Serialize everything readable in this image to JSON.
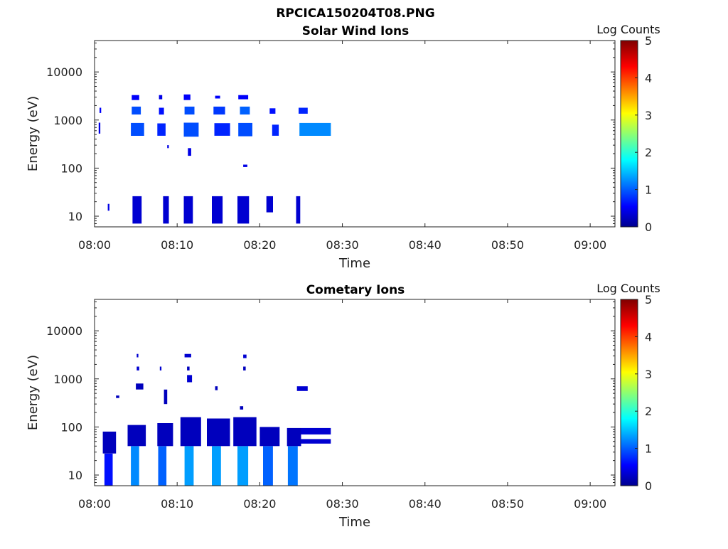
{
  "figure_title": "RPCICA150204T08.PNG",
  "chart_data": [
    {
      "type": "heatmap",
      "title": "Solar Wind Ions",
      "xlabel": "Time",
      "ylabel": "Energy (eV)",
      "x_ticks": [
        "08:00",
        "08:10",
        "08:20",
        "08:30",
        "08:40",
        "08:50",
        "09:00"
      ],
      "x_range_minutes": [
        0,
        63
      ],
      "y_scale": "log",
      "y_ticks": [
        "10",
        "100",
        "1000",
        "10000"
      ],
      "y_range": [
        6,
        45000
      ],
      "grid": false,
      "colorbar": {
        "label": "Log Counts",
        "min": 0,
        "max": 5,
        "ticks": [
          "0",
          "1",
          "2",
          "3",
          "4",
          "5"
        ],
        "colormap": "jet"
      },
      "cells": [
        {
          "t": [
            0.6,
            0.8
          ],
          "e": [
            1400,
            1800
          ],
          "v": 0.6
        },
        {
          "t": [
            0.5,
            0.7
          ],
          "e": [
            520,
            880
          ],
          "v": 0.5
        },
        {
          "t": [
            1.6,
            1.8
          ],
          "e": [
            13,
            18
          ],
          "v": 0.5
        },
        {
          "t": [
            4.5,
            5.4
          ],
          "e": [
            2600,
            3300
          ],
          "v": 0.6
        },
        {
          "t": [
            4.5,
            5.6
          ],
          "e": [
            1300,
            1900
          ],
          "v": 1.0
        },
        {
          "t": [
            4.4,
            6.0
          ],
          "e": [
            470,
            870
          ],
          "v": 1.0
        },
        {
          "t": [
            4.6,
            5.7
          ],
          "e": [
            7,
            26
          ],
          "v": 0.4
        },
        {
          "t": [
            7.8,
            8.2
          ],
          "e": [
            2700,
            3300
          ],
          "v": 0.5
        },
        {
          "t": [
            7.8,
            8.4
          ],
          "e": [
            1300,
            1800
          ],
          "v": 0.7
        },
        {
          "t": [
            7.6,
            8.6
          ],
          "e": [
            470,
            850
          ],
          "v": 0.8
        },
        {
          "t": [
            8.8,
            9.0
          ],
          "e": [
            260,
            300
          ],
          "v": 0.5
        },
        {
          "t": [
            8.3,
            9.0
          ],
          "e": [
            7,
            26
          ],
          "v": 0.4
        },
        {
          "t": [
            10.8,
            11.6
          ],
          "e": [
            2600,
            3400
          ],
          "v": 0.6
        },
        {
          "t": [
            10.9,
            12.1
          ],
          "e": [
            1300,
            1900
          ],
          "v": 1.0
        },
        {
          "t": [
            10.8,
            12.6
          ],
          "e": [
            450,
            880
          ],
          "v": 1.0
        },
        {
          "t": [
            11.3,
            11.7
          ],
          "e": [
            180,
            260
          ],
          "v": 0.5
        },
        {
          "t": [
            10.8,
            11.9
          ],
          "e": [
            7,
            26
          ],
          "v": 0.4
        },
        {
          "t": [
            14.6,
            15.2
          ],
          "e": [
            2800,
            3200
          ],
          "v": 0.6
        },
        {
          "t": [
            14.4,
            15.8
          ],
          "e": [
            1300,
            1900
          ],
          "v": 0.9
        },
        {
          "t": [
            14.5,
            16.4
          ],
          "e": [
            470,
            860
          ],
          "v": 0.8
        },
        {
          "t": [
            14.2,
            15.5
          ],
          "e": [
            7,
            26
          ],
          "v": 0.4
        },
        {
          "t": [
            17.4,
            18.6
          ],
          "e": [
            2700,
            3300
          ],
          "v": 0.6
        },
        {
          "t": [
            17.6,
            18.8
          ],
          "e": [
            1300,
            1900
          ],
          "v": 1.1
        },
        {
          "t": [
            17.4,
            19.1
          ],
          "e": [
            460,
            870
          ],
          "v": 1.0
        },
        {
          "t": [
            18.0,
            18.5
          ],
          "e": [
            105,
            118
          ],
          "v": 0.5
        },
        {
          "t": [
            17.3,
            18.7
          ],
          "e": [
            7,
            26
          ],
          "v": 0.4
        },
        {
          "t": [
            21.2,
            21.9
          ],
          "e": [
            1350,
            1750
          ],
          "v": 0.7
        },
        {
          "t": [
            21.5,
            22.3
          ],
          "e": [
            470,
            800
          ],
          "v": 0.8
        },
        {
          "t": [
            20.8,
            21.6
          ],
          "e": [
            12,
            26
          ],
          "v": 0.4
        },
        {
          "t": [
            24.7,
            25.8
          ],
          "e": [
            1350,
            1800
          ],
          "v": 0.8
        },
        {
          "t": [
            24.4,
            24.9
          ],
          "e": [
            7,
            26
          ],
          "v": 0.4
        },
        {
          "t": [
            24.8,
            28.6
          ],
          "e": [
            470,
            870
          ],
          "v": 1.3
        }
      ]
    },
    {
      "type": "heatmap",
      "title": "Cometary Ions",
      "xlabel": "Time",
      "ylabel": "Energy (eV)",
      "x_ticks": [
        "08:00",
        "08:10",
        "08:20",
        "08:30",
        "08:40",
        "08:50",
        "09:00"
      ],
      "x_range_minutes": [
        0,
        63
      ],
      "y_scale": "log",
      "y_ticks": [
        "10",
        "100",
        "1000",
        "10000"
      ],
      "y_range": [
        6,
        45000
      ],
      "grid": false,
      "colorbar": {
        "label": "Log Counts",
        "min": 0,
        "max": 5,
        "ticks": [
          "0",
          "1",
          "2",
          "3",
          "4",
          "5"
        ],
        "colormap": "jet"
      },
      "cells": [
        {
          "t": [
            1.2,
            2.2
          ],
          "e": [
            6,
            28
          ],
          "v": 0.7
        },
        {
          "t": [
            1.0,
            2.6
          ],
          "e": [
            28,
            80
          ],
          "v": 0.3
        },
        {
          "t": [
            2.6,
            3.0
          ],
          "e": [
            400,
            450
          ],
          "v": 0.3
        },
        {
          "t": [
            4.4,
            5.4
          ],
          "e": [
            6,
            40
          ],
          "v": 1.3
        },
        {
          "t": [
            4.0,
            6.2
          ],
          "e": [
            40,
            110
          ],
          "v": 0.3
        },
        {
          "t": [
            5.1,
            5.4
          ],
          "e": [
            1500,
            1800
          ],
          "v": 0.4
        },
        {
          "t": [
            5.1,
            5.3
          ],
          "e": [
            2800,
            3300
          ],
          "v": 0.4
        },
        {
          "t": [
            5.0,
            5.9
          ],
          "e": [
            600,
            800
          ],
          "v": 0.3
        },
        {
          "t": [
            7.7,
            8.7
          ],
          "e": [
            6,
            40
          ],
          "v": 1.1
        },
        {
          "t": [
            7.6,
            9.5
          ],
          "e": [
            40,
            120
          ],
          "v": 0.3
        },
        {
          "t": [
            8.4,
            8.8
          ],
          "e": [
            300,
            600
          ],
          "v": 0.3
        },
        {
          "t": [
            7.9,
            8.1
          ],
          "e": [
            1500,
            1800
          ],
          "v": 0.4
        },
        {
          "t": [
            10.9,
            12.0
          ],
          "e": [
            6,
            40
          ],
          "v": 1.4
        },
        {
          "t": [
            10.4,
            12.9
          ],
          "e": [
            40,
            160
          ],
          "v": 0.3
        },
        {
          "t": [
            11.2,
            11.8
          ],
          "e": [
            850,
            1200
          ],
          "v": 0.4
        },
        {
          "t": [
            10.9,
            11.7
          ],
          "e": [
            2800,
            3300
          ],
          "v": 0.4
        },
        {
          "t": [
            11.2,
            11.5
          ],
          "e": [
            1500,
            1800
          ],
          "v": 0.3
        },
        {
          "t": [
            14.2,
            15.3
          ],
          "e": [
            6,
            40
          ],
          "v": 1.4
        },
        {
          "t": [
            13.6,
            16.4
          ],
          "e": [
            40,
            150
          ],
          "v": 0.3
        },
        {
          "t": [
            14.6,
            14.9
          ],
          "e": [
            580,
            700
          ],
          "v": 0.3
        },
        {
          "t": [
            17.3,
            18.6
          ],
          "e": [
            6,
            40
          ],
          "v": 1.4
        },
        {
          "t": [
            16.8,
            19.6
          ],
          "e": [
            40,
            160
          ],
          "v": 0.3
        },
        {
          "t": [
            17.6,
            18.0
          ],
          "e": [
            230,
            270
          ],
          "v": 0.3
        },
        {
          "t": [
            18.0,
            18.4
          ],
          "e": [
            2700,
            3200
          ],
          "v": 0.4
        },
        {
          "t": [
            18.0,
            18.3
          ],
          "e": [
            1500,
            1800
          ],
          "v": 0.3
        },
        {
          "t": [
            20.4,
            21.6
          ],
          "e": [
            6,
            40
          ],
          "v": 1.1
        },
        {
          "t": [
            20.0,
            22.4
          ],
          "e": [
            40,
            100
          ],
          "v": 0.3
        },
        {
          "t": [
            23.4,
            24.6
          ],
          "e": [
            6,
            40
          ],
          "v": 1.2
        },
        {
          "t": [
            23.3,
            25.0
          ],
          "e": [
            40,
            95
          ],
          "v": 0.3
        },
        {
          "t": [
            24.5,
            25.8
          ],
          "e": [
            560,
            700
          ],
          "v": 0.4
        },
        {
          "t": [
            25.0,
            28.6
          ],
          "e": [
            70,
            95
          ],
          "v": 0.4
        },
        {
          "t": [
            25.0,
            28.6
          ],
          "e": [
            45,
            56
          ],
          "v": 0.4
        }
      ]
    }
  ]
}
